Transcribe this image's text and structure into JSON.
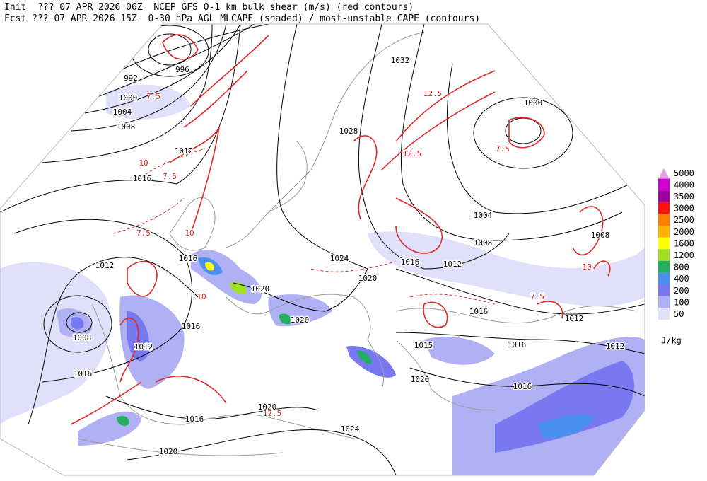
{
  "header": {
    "line1": "Init  ??? 07 APR 2026 06Z  NCEP GFS 0-1 km bulk shear (m/s) (red contours)",
    "line2": "Fcst ??? 07 APR 2026 15Z  0-30 hPa AGL MLCAPE (shaded) / most-unstable CAPE (contours)"
  },
  "legend": {
    "unit": "J/kg",
    "levels": [
      {
        "label": "5000",
        "color": "#e6a0e6"
      },
      {
        "label": "4000",
        "color": "#d000d0"
      },
      {
        "label": "3500",
        "color": "#a000a0"
      },
      {
        "label": "3000",
        "color": "#ff1010"
      },
      {
        "label": "2500",
        "color": "#ff8000"
      },
      {
        "label": "2000",
        "color": "#ffb000"
      },
      {
        "label": "1600",
        "color": "#ffff00"
      },
      {
        "label": "1200",
        "color": "#a0e020"
      },
      {
        "label": "800",
        "color": "#20b060"
      },
      {
        "label": "400",
        "color": "#4a90f0"
      },
      {
        "label": "200",
        "color": "#7878f0"
      },
      {
        "label": "100",
        "color": "#b0b0f4"
      },
      {
        "label": "50",
        "color": "#e0e0fa"
      }
    ]
  },
  "isobar_labels": [
    "996",
    "992",
    "1000",
    "1004",
    "1008",
    "1012",
    "1016",
    "1032",
    "1028",
    "1000",
    "1004",
    "1008",
    "1008",
    "1016",
    "1012",
    "1024",
    "1016",
    "1012",
    "1020",
    "1020",
    "1020",
    "1016",
    "1008",
    "1012",
    "1016",
    "1012",
    "1015",
    "1016",
    "1012",
    "1016",
    "1020",
    "1016",
    "1020",
    "1016",
    "1024",
    "1020"
  ],
  "shear_labels": [
    "7.5",
    "10",
    "12.5",
    "7.5",
    "10",
    "7.5",
    "12.5",
    "7.5",
    "10",
    "7.5",
    "12.5",
    "10"
  ]
}
